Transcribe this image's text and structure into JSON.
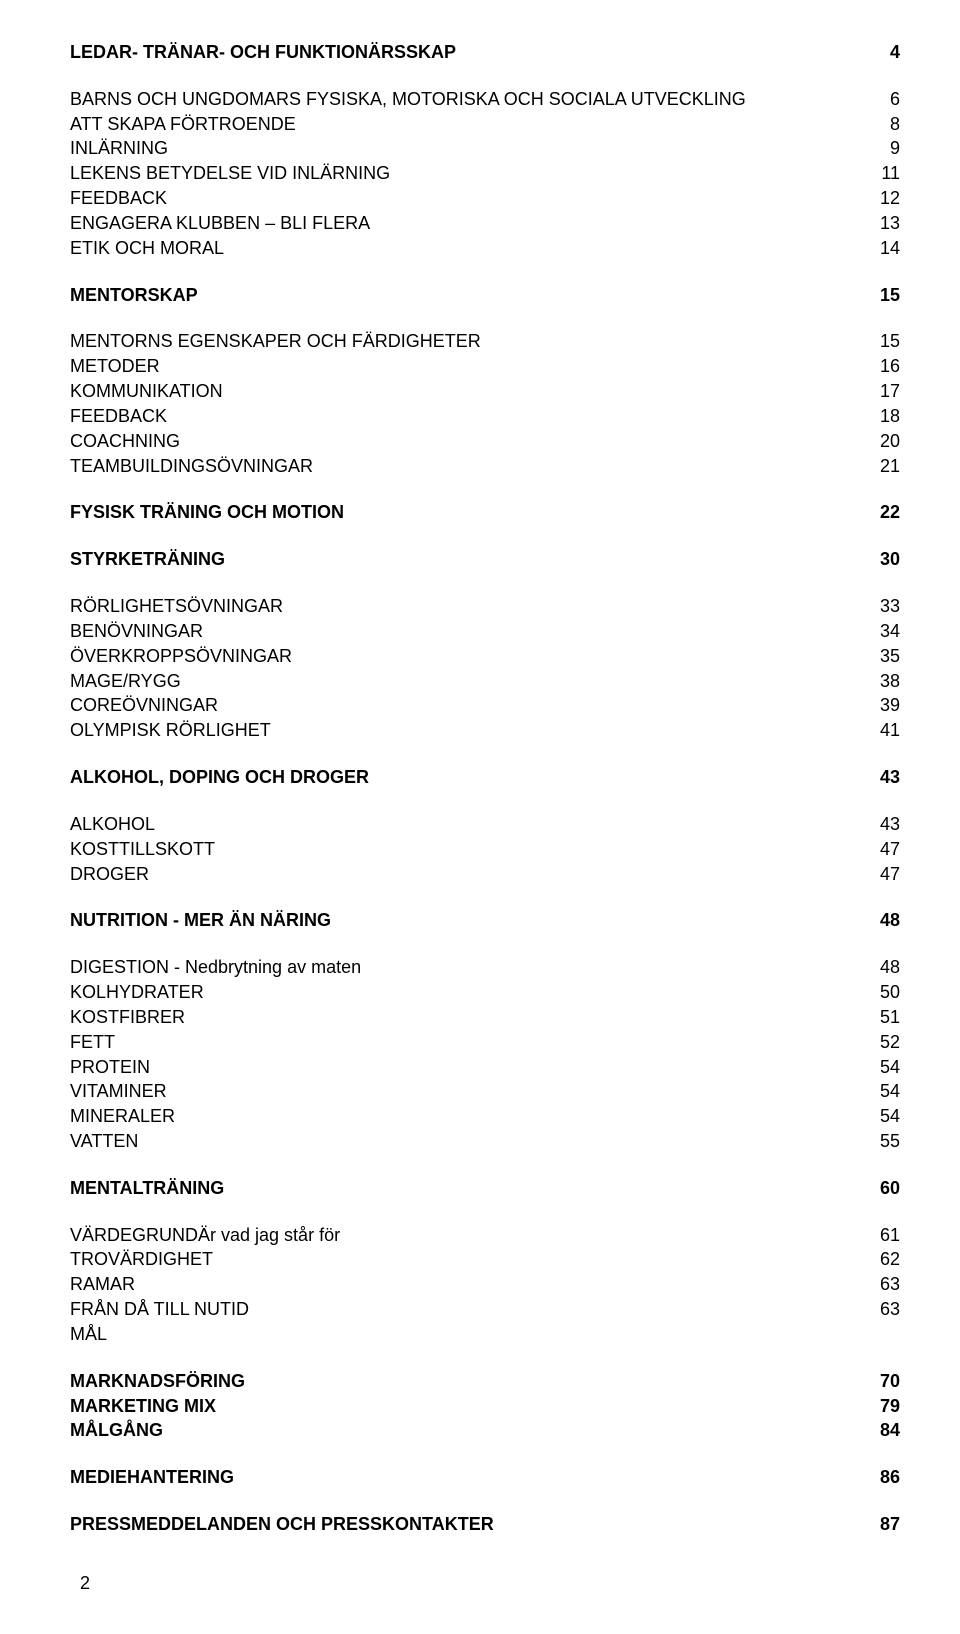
{
  "toc": [
    {
      "label": "LEDAR- TRÄNAR- OCH FUNKTIONÄRSSKAP",
      "page": "4",
      "bold": true,
      "gap": false
    },
    {
      "label": "BARNS OCH UNGDOMARS FYSISKA, MOTORISKA  OCH SOCIALA UTVECKLING",
      "page": "6",
      "bold": false,
      "gap": true
    },
    {
      "label": "ATT SKAPA FÖRTROENDE",
      "page": "8",
      "bold": false,
      "gap": false
    },
    {
      "label": "INLÄRNING",
      "page": "9",
      "bold": false,
      "gap": false
    },
    {
      "label": "LEKENS BETYDELSE VID INLÄRNING",
      "page": "11",
      "bold": false,
      "gap": false
    },
    {
      "label": "FEEDBACK",
      "page": "12",
      "bold": false,
      "gap": false
    },
    {
      "label": "ENGAGERA KLUBBEN – BLI FLERA",
      "page": "13",
      "bold": false,
      "gap": false
    },
    {
      "label": "ETIK OCH MORAL",
      "page": "14",
      "bold": false,
      "gap": false
    },
    {
      "label": "MENTORSKAP",
      "page": "15",
      "bold": true,
      "gap": true
    },
    {
      "label": "MENTORNS EGENSKAPER OCH FÄRDIGHETER",
      "page": "15",
      "bold": false,
      "gap": true
    },
    {
      "label": "METODER",
      "page": "16",
      "bold": false,
      "gap": false
    },
    {
      "label": "KOMMUNIKATION",
      "page": "17",
      "bold": false,
      "gap": false
    },
    {
      "label": "FEEDBACK",
      "page": "18",
      "bold": false,
      "gap": false
    },
    {
      "label": "COACHNING",
      "page": "20",
      "bold": false,
      "gap": false
    },
    {
      "label": "TEAMBUILDINGSÖVNINGAR",
      "page": "21",
      "bold": false,
      "gap": false
    },
    {
      "label": "FYSISK TRÄNING OCH MOTION",
      "page": "22",
      "bold": true,
      "gap": true
    },
    {
      "label": "STYRKETRÄNING",
      "page": "30",
      "bold": true,
      "gap": true
    },
    {
      "label": "RÖRLIGHETSÖVNINGAR",
      "page": "33",
      "bold": false,
      "gap": true
    },
    {
      "label": "BENÖVNINGAR",
      "page": "34",
      "bold": false,
      "gap": false
    },
    {
      "label": "ÖVERKROPPSÖVNINGAR",
      "page": "35",
      "bold": false,
      "gap": false
    },
    {
      "label": "MAGE/RYGG",
      "page": "38",
      "bold": false,
      "gap": false
    },
    {
      "label": "COREÖVNINGAR",
      "page": "39",
      "bold": false,
      "gap": false
    },
    {
      "label": "OLYMPISK RÖRLIGHET",
      "page": "41",
      "bold": false,
      "gap": false
    },
    {
      "label": "ALKOHOL, DOPING OCH DROGER",
      "page": "43",
      "bold": true,
      "gap": true
    },
    {
      "label": "ALKOHOL",
      "page": "43",
      "bold": false,
      "gap": true
    },
    {
      "label": "KOSTTILLSKOTT",
      "page": "47",
      "bold": false,
      "gap": false
    },
    {
      "label": "DROGER",
      "page": "47",
      "bold": false,
      "gap": false
    },
    {
      "label": "NUTRITION - MER ÄN NÄRING",
      "page": "48",
      "bold": true,
      "gap": true
    },
    {
      "label": "DIGESTION - Nedbrytning av maten",
      "page": "48",
      "bold": false,
      "gap": true
    },
    {
      "label": "KOLHYDRATER",
      "page": "50",
      "bold": false,
      "gap": false
    },
    {
      "label": "KOSTFIBRER",
      "page": "51",
      "bold": false,
      "gap": false
    },
    {
      "label": "FETT",
      "page": "52",
      "bold": false,
      "gap": false
    },
    {
      "label": "PROTEIN",
      "page": "54",
      "bold": false,
      "gap": false
    },
    {
      "label": "VITAMINER",
      "page": "54",
      "bold": false,
      "gap": false
    },
    {
      "label": "MINERALER",
      "page": "54",
      "bold": false,
      "gap": false
    },
    {
      "label": "VATTEN",
      "page": "55",
      "bold": false,
      "gap": false
    },
    {
      "label": "MENTALTRÄNING",
      "page": "60",
      "bold": true,
      "gap": true
    },
    {
      "label": "VÄRDEGRUNDÄr vad jag står för",
      "page": "61",
      "bold": false,
      "gap": true
    },
    {
      "label": "TROVÄRDIGHET",
      "page": "62",
      "bold": false,
      "gap": false
    },
    {
      "label": "RAMAR",
      "page": "63",
      "bold": false,
      "gap": false
    },
    {
      "label": "FRÅN DÅ TILL NUTID",
      "page": "63",
      "bold": false,
      "gap": false
    },
    {
      "label": "MÅL",
      "page": "",
      "bold": false,
      "gap": false
    },
    {
      "label": "MARKNADSFÖRING",
      "page": "70",
      "bold": true,
      "gap": true
    },
    {
      "label": "MARKETING MIX",
      "page": "79",
      "bold": true,
      "gap": false
    },
    {
      "label": "MÅLGÅNG",
      "page": "84",
      "bold": true,
      "gap": false
    },
    {
      "label": "MEDIEHANTERING",
      "page": "86",
      "bold": true,
      "gap": true
    },
    {
      "label": "PRESSMEDDELANDEN OCH PRESSKONTAKTER",
      "page": "87",
      "bold": true,
      "gap": true
    }
  ],
  "page_number": "2"
}
